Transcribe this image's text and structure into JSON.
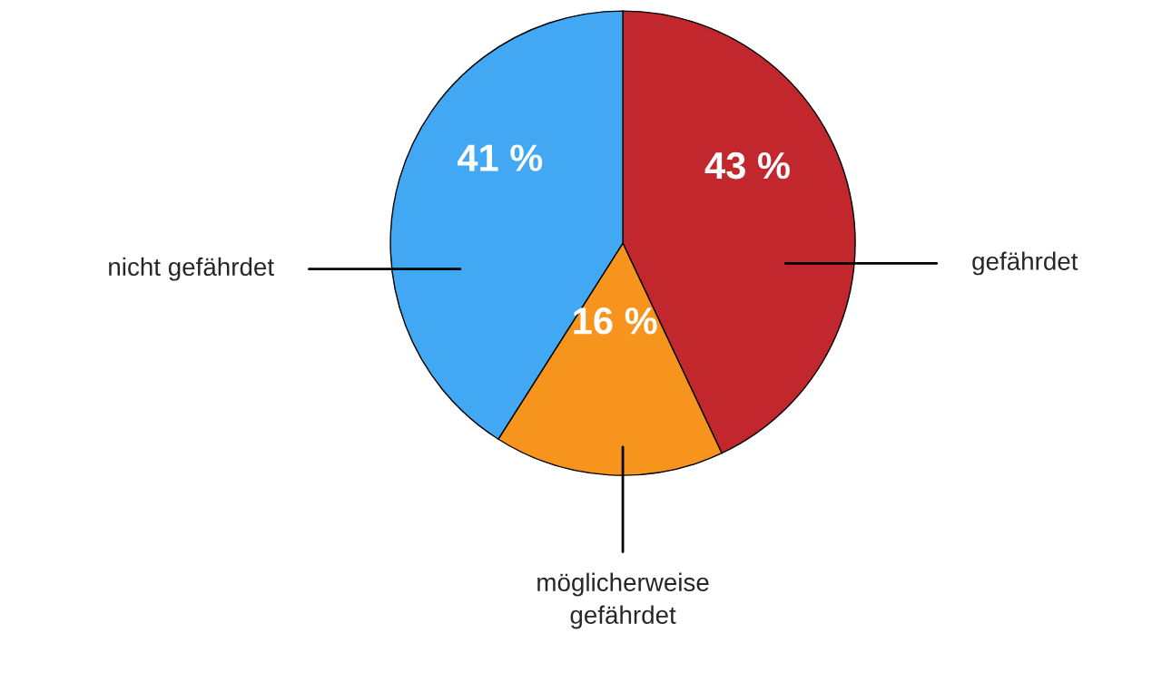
{
  "chart_data": {
    "type": "pie",
    "categories": [
      "gefährdet",
      "möglicherweise\ngefährdet",
      "nicht gefährdet"
    ],
    "values": [
      43,
      16,
      41
    ],
    "colors": [
      "#c1272d",
      "#f7941d",
      "#42a8f4"
    ],
    "value_labels": [
      "43 %",
      "16 %",
      "41 %"
    ]
  }
}
